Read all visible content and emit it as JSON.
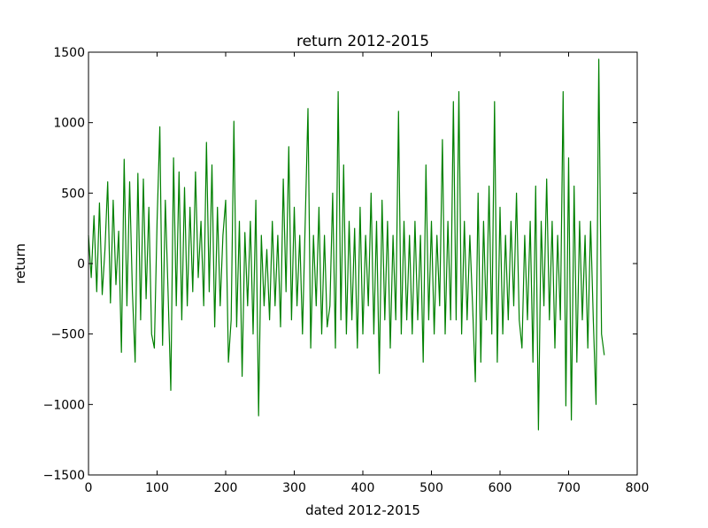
{
  "chart_data": {
    "type": "line",
    "title": "return 2012-2015",
    "xlabel": "dated 2012-2015",
    "ylabel": "return",
    "xlim": [
      0,
      800
    ],
    "ylim": [
      -1500,
      1500
    ],
    "xticks": [
      0,
      100,
      200,
      300,
      400,
      500,
      600,
      700,
      800
    ],
    "yticks": [
      -1500,
      -1000,
      -500,
      0,
      500,
      1000,
      1500
    ],
    "xtick_labels": [
      "0",
      "100",
      "200",
      "300",
      "400",
      "500",
      "600",
      "700",
      "800"
    ],
    "ytick_labels": [
      "−1500",
      "−1000",
      "−500",
      "0",
      "500",
      "1000",
      "1500"
    ],
    "grid": false,
    "line_color": "#008000",
    "series": [
      {
        "x": [
          0,
          4,
          8,
          12,
          16,
          20,
          24,
          28,
          32,
          36,
          40,
          44,
          48,
          52,
          56,
          60,
          64,
          68,
          72,
          76,
          80,
          84,
          88,
          92,
          96,
          100,
          104,
          108,
          112,
          116,
          120,
          124,
          128,
          132,
          136,
          140,
          144,
          148,
          152,
          156,
          160,
          164,
          168,
          172,
          176,
          180,
          184,
          188,
          192,
          196,
          200,
          204,
          208,
          212,
          216,
          220,
          224,
          228,
          232,
          236,
          240,
          244,
          248,
          252,
          256,
          260,
          264,
          268,
          272,
          276,
          280,
          284,
          288,
          292,
          296,
          300,
          304,
          308,
          312,
          316,
          320,
          324,
          328,
          332,
          336,
          340,
          344,
          348,
          352,
          356,
          360,
          364,
          368,
          372,
          376,
          380,
          384,
          388,
          392,
          396,
          400,
          404,
          408,
          412,
          416,
          420,
          424,
          428,
          432,
          436,
          440,
          444,
          448,
          452,
          456,
          460,
          464,
          468,
          472,
          476,
          480,
          484,
          488,
          492,
          496,
          500,
          504,
          508,
          512,
          516,
          520,
          524,
          528,
          532,
          536,
          540,
          544,
          548,
          552,
          556,
          560,
          564,
          568,
          572,
          576,
          580,
          584,
          588,
          592,
          596,
          600,
          604,
          608,
          612,
          616,
          620,
          624,
          628,
          632,
          636,
          640,
          644,
          648,
          652,
          656,
          660,
          664,
          668,
          672,
          676,
          680,
          684,
          688,
          692,
          696,
          700,
          704,
          708,
          712,
          716,
          720,
          724,
          728,
          732,
          736,
          740,
          744,
          748,
          752
        ],
        "y": [
          200,
          -100,
          340,
          -200,
          430,
          -220,
          100,
          580,
          -280,
          450,
          -150,
          230,
          -630,
          740,
          -300,
          580,
          -200,
          -700,
          640,
          -400,
          600,
          -250,
          400,
          -500,
          -600,
          300,
          970,
          -580,
          450,
          -200,
          -900,
          750,
          -300,
          650,
          -400,
          540,
          -300,
          400,
          -200,
          650,
          -100,
          300,
          -300,
          860,
          -200,
          700,
          -450,
          400,
          -300,
          200,
          450,
          -700,
          -400,
          1010,
          -450,
          300,
          -800,
          220,
          -300,
          300,
          -500,
          450,
          -1080,
          200,
          -300,
          100,
          -400,
          300,
          -300,
          200,
          -450,
          600,
          -200,
          830,
          -400,
          400,
          -300,
          200,
          -500,
          300,
          1100,
          -600,
          200,
          -300,
          400,
          -500,
          200,
          -450,
          -300,
          500,
          -600,
          1220,
          -400,
          700,
          -500,
          300,
          -400,
          250,
          -600,
          400,
          -500,
          200,
          -300,
          500,
          -500,
          300,
          -780,
          450,
          -400,
          300,
          -600,
          200,
          -400,
          1080,
          -500,
          300,
          -400,
          200,
          -500,
          300,
          -400,
          200,
          -700,
          700,
          -400,
          300,
          -500,
          200,
          -300,
          880,
          -500,
          300,
          -400,
          1150,
          -400,
          1220,
          -500,
          300,
          -400,
          200,
          -300,
          -840,
          500,
          -700,
          300,
          -400,
          550,
          -500,
          1150,
          -700,
          400,
          -500,
          200,
          -400,
          300,
          -300,
          500,
          -400,
          -600,
          200,
          -400,
          300,
          -700,
          550,
          -1180,
          300,
          -300,
          600,
          -400,
          300,
          -600,
          200,
          -400,
          1220,
          -1010,
          750,
          -1110,
          550,
          -700,
          300,
          -400,
          200,
          -600,
          300,
          -400,
          -1000,
          1450,
          -500,
          -650
        ]
      }
    ]
  }
}
